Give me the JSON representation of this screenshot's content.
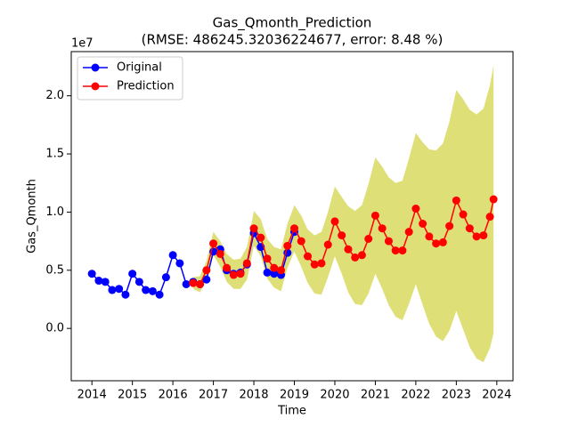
{
  "chart_data": {
    "type": "line",
    "title": "Gas_Qmonth_Prediction",
    "subtitle": "(RMSE: 486245.32036224677, error: 8.48 %)",
    "x_label": "Time",
    "y_label": "Gas_Qmonth",
    "y_offset_label": "1e7",
    "legend": "upper left",
    "xlim": [
      2013.49,
      2024.4
    ],
    "xticks": [
      2014,
      2015,
      2016,
      2017,
      2018,
      2019,
      2020,
      2021,
      2022,
      2023,
      2024
    ],
    "ylim": [
      -0.45,
      2.38
    ],
    "yticks": [
      {
        "value": 0,
        "label": "0.0"
      },
      0.5,
      {
        "value": 1,
        "label": "1.0"
      },
      1.5,
      {
        "value": 2,
        "label": "2.0"
      }
    ],
    "band_color": "#d4d44a",
    "series": [
      {
        "name": "Original",
        "color": "#0000ff",
        "x": [
          2014.0,
          2014.17,
          2014.33,
          2014.5,
          2014.67,
          2014.83,
          2015.0,
          2015.17,
          2015.33,
          2015.5,
          2015.67,
          2015.83,
          2016.0,
          2016.17,
          2016.33,
          2016.5,
          2016.67,
          2016.83,
          2017.0,
          2017.17,
          2017.33,
          2017.5,
          2017.67,
          2017.83,
          2018.0,
          2018.17,
          2018.33,
          2018.5,
          2018.67,
          2018.83,
          2019.0
        ],
        "values": [
          0.47,
          0.41,
          0.4,
          0.33,
          0.34,
          0.29,
          0.47,
          0.4,
          0.33,
          0.32,
          0.29,
          0.44,
          0.63,
          0.56,
          0.38,
          0.4,
          0.38,
          0.42,
          0.66,
          0.68,
          0.5,
          0.47,
          0.48,
          0.55,
          0.82,
          0.7,
          0.48,
          0.47,
          0.46,
          0.65,
          0.83
        ]
      },
      {
        "name": "Prediction",
        "color": "#ff0000",
        "x": [
          2016.5,
          2016.67,
          2016.83,
          2017.0,
          2017.17,
          2017.33,
          2017.5,
          2017.67,
          2017.83,
          2018.0,
          2018.17,
          2018.33,
          2018.5,
          2018.67,
          2018.83,
          2019.0,
          2019.17,
          2019.33,
          2019.5,
          2019.67,
          2019.83,
          2020.0,
          2020.17,
          2020.33,
          2020.5,
          2020.67,
          2020.83,
          2021.0,
          2021.17,
          2021.33,
          2021.5,
          2021.67,
          2021.83,
          2022.0,
          2022.17,
          2022.33,
          2022.5,
          2022.67,
          2022.83,
          2023.0,
          2023.17,
          2023.33,
          2023.5,
          2023.67,
          2023.83,
          2023.92
        ],
        "values": [
          0.39,
          0.38,
          0.5,
          0.73,
          0.64,
          0.52,
          0.46,
          0.47,
          0.56,
          0.86,
          0.78,
          0.6,
          0.52,
          0.5,
          0.71,
          0.86,
          0.75,
          0.62,
          0.55,
          0.56,
          0.72,
          0.92,
          0.8,
          0.68,
          0.61,
          0.63,
          0.77,
          0.97,
          0.86,
          0.75,
          0.67,
          0.67,
          0.83,
          1.03,
          0.9,
          0.79,
          0.73,
          0.74,
          0.88,
          1.1,
          0.98,
          0.86,
          0.79,
          0.8,
          0.96,
          1.11
        ],
        "upper": [
          0.44,
          0.45,
          0.58,
          0.83,
          0.75,
          0.64,
          0.59,
          0.6,
          0.7,
          1.01,
          0.94,
          0.77,
          0.7,
          0.68,
          0.9,
          1.06,
          0.97,
          0.85,
          0.8,
          0.83,
          1.0,
          1.22,
          1.13,
          1.05,
          1.01,
          1.06,
          1.24,
          1.47,
          1.39,
          1.3,
          1.25,
          1.27,
          1.46,
          1.68,
          1.6,
          1.54,
          1.53,
          1.59,
          1.78,
          2.05,
          1.97,
          1.88,
          1.84,
          1.89,
          2.09,
          2.26
        ],
        "lower": [
          0.34,
          0.31,
          0.42,
          0.63,
          0.53,
          0.4,
          0.34,
          0.34,
          0.42,
          0.71,
          0.62,
          0.43,
          0.35,
          0.32,
          0.52,
          0.66,
          0.53,
          0.39,
          0.3,
          0.29,
          0.44,
          0.62,
          0.47,
          0.31,
          0.21,
          0.2,
          0.3,
          0.47,
          0.34,
          0.2,
          0.1,
          0.07,
          0.21,
          0.38,
          0.2,
          0.04,
          -0.07,
          -0.11,
          -0.02,
          0.15,
          -0.01,
          -0.16,
          -0.26,
          -0.29,
          -0.17,
          -0.04
        ]
      }
    ]
  }
}
